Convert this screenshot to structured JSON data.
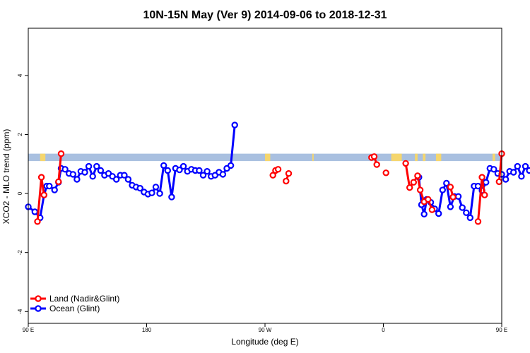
{
  "chart_data": {
    "type": "line",
    "title": "10N-15N May (Ver 9)   2014-09-06 to 2018-12-31",
    "xlabel": "Longitude (deg E)",
    "ylabel": "XCO2 - MLO trend (ppm)",
    "xlim": [
      90,
      450
    ],
    "ylim": [
      -4.4,
      5.6
    ],
    "x_ticks": [
      {
        "value": 90,
        "label": "90 E"
      },
      {
        "value": 180,
        "label": "180"
      },
      {
        "value": 270,
        "label": "90 W"
      },
      {
        "value": 360,
        "label": "0"
      },
      {
        "value": 450,
        "label": "90 E"
      },
      {
        "value": 540,
        "label": "180"
      }
    ],
    "y_ticks": [
      {
        "value": -4,
        "label": "-4"
      },
      {
        "value": -2,
        "label": "-2"
      },
      {
        "value": 0,
        "label": "0"
      },
      {
        "value": 2,
        "label": "2"
      },
      {
        "value": 4,
        "label": "4"
      }
    ],
    "band": {
      "y_low": 1.1,
      "y_high": 1.35,
      "colors": {
        "ocean": "#a9c0e0",
        "land": "#f5d66e"
      }
    },
    "land_band_segments": [
      [
        99,
        103
      ],
      [
        270,
        274
      ],
      [
        306,
        307
      ],
      [
        366,
        374
      ],
      [
        384,
        386
      ],
      [
        390,
        392
      ],
      [
        400,
        404
      ],
      [
        443,
        445
      ],
      [
        471,
        472
      ],
      [
        489,
        495
      ]
    ],
    "series": [
      {
        "name": "Land (Nadir&Glint)",
        "color": "#ff0000",
        "segments": [
          [
            [
              97,
              -0.95
            ],
            [
              100,
              0.55
            ],
            [
              102,
              -0.05
            ]
          ],
          [
            [
              113,
              0.4
            ],
            [
              115,
              1.35
            ]
          ],
          [
            [
              276,
              0.62
            ],
            [
              278,
              0.78
            ],
            [
              280,
              0.82
            ]
          ],
          [
            [
              286,
              0.42
            ],
            [
              288,
              0.68
            ]
          ],
          [
            [
              351,
              1.22
            ],
            [
              353,
              1.25
            ],
            [
              355,
              0.98
            ]
          ],
          [
            [
              362,
              0.7
            ]
          ],
          [
            [
              377,
              1.02
            ],
            [
              380,
              0.2
            ],
            [
              383,
              0.38
            ],
            [
              386,
              0.6
            ],
            [
              388,
              0.12
            ],
            [
              391,
              -0.28
            ],
            [
              394,
              -0.2
            ],
            [
              397,
              -0.55
            ]
          ],
          [
            [
              411,
              0.22
            ],
            [
              413,
              -0.12
            ]
          ],
          [
            [
              432,
              -0.95
            ],
            [
              435,
              0.55
            ],
            [
              437,
              -0.05
            ]
          ],
          [
            [
              448,
              0.4
            ],
            [
              450,
              1.35
            ]
          ]
        ]
      },
      {
        "name": "Ocean (Glint)",
        "color": "#0000ff",
        "segments": [
          [
            [
              90,
              -0.45
            ],
            [
              95,
              -0.62
            ],
            [
              99,
              -0.82
            ],
            [
              102,
              -0.05
            ],
            [
              104,
              0.25
            ],
            [
              106,
              0.25
            ],
            [
              110,
              0.12
            ],
            [
              113,
              0.38
            ],
            [
              115,
              0.85
            ],
            [
              118,
              0.82
            ],
            [
              121,
              0.68
            ],
            [
              124,
              0.65
            ],
            [
              127,
              0.48
            ],
            [
              130,
              0.75
            ],
            [
              133,
              0.72
            ],
            [
              136,
              0.92
            ],
            [
              139,
              0.58
            ],
            [
              142,
              0.92
            ],
            [
              145,
              0.78
            ],
            [
              148,
              0.62
            ],
            [
              151,
              0.68
            ],
            [
              154,
              0.58
            ],
            [
              157,
              0.48
            ],
            [
              160,
              0.62
            ],
            [
              163,
              0.62
            ],
            [
              166,
              0.48
            ],
            [
              169,
              0.28
            ],
            [
              172,
              0.22
            ],
            [
              175,
              0.18
            ],
            [
              178,
              0.05
            ],
            [
              181,
              -0.02
            ],
            [
              184,
              0.02
            ],
            [
              187,
              0.22
            ],
            [
              190,
              0.0
            ],
            [
              193,
              0.95
            ],
            [
              196,
              0.78
            ],
            [
              199,
              -0.12
            ],
            [
              202,
              0.85
            ],
            [
              205,
              0.8
            ],
            [
              208,
              0.92
            ],
            [
              211,
              0.75
            ],
            [
              214,
              0.82
            ],
            [
              217,
              0.78
            ],
            [
              220,
              0.78
            ],
            [
              223,
              0.62
            ],
            [
              226,
              0.75
            ],
            [
              229,
              0.58
            ],
            [
              232,
              0.62
            ],
            [
              235,
              0.72
            ],
            [
              238,
              0.65
            ],
            [
              241,
              0.85
            ],
            [
              244,
              0.95
            ],
            [
              247,
              2.32
            ]
          ],
          [
            [
              387,
              0.55
            ],
            [
              389,
              -0.38
            ],
            [
              391,
              -0.7
            ],
            [
              393,
              -0.2
            ],
            [
              396,
              -0.3
            ],
            [
              399,
              -0.52
            ],
            [
              402,
              -0.68
            ],
            [
              405,
              0.12
            ],
            [
              408,
              0.35
            ],
            [
              411,
              -0.45
            ],
            [
              414,
              -0.1
            ],
            [
              417,
              -0.1
            ],
            [
              420,
              -0.48
            ],
            [
              423,
              -0.65
            ],
            [
              426,
              -0.82
            ],
            [
              429,
              0.25
            ],
            [
              432,
              0.25
            ],
            [
              435,
              0.1
            ],
            [
              438,
              0.38
            ],
            [
              441,
              0.85
            ],
            [
              444,
              0.82
            ],
            [
              447,
              0.68
            ],
            [
              450,
              0.65
            ],
            [
              453,
              0.48
            ],
            [
              456,
              0.75
            ],
            [
              459,
              0.72
            ],
            [
              462,
              0.92
            ],
            [
              465,
              0.58
            ],
            [
              468,
              0.92
            ],
            [
              471,
              0.78
            ]
          ]
        ]
      }
    ],
    "legend": {
      "position": "bottom-left"
    }
  }
}
